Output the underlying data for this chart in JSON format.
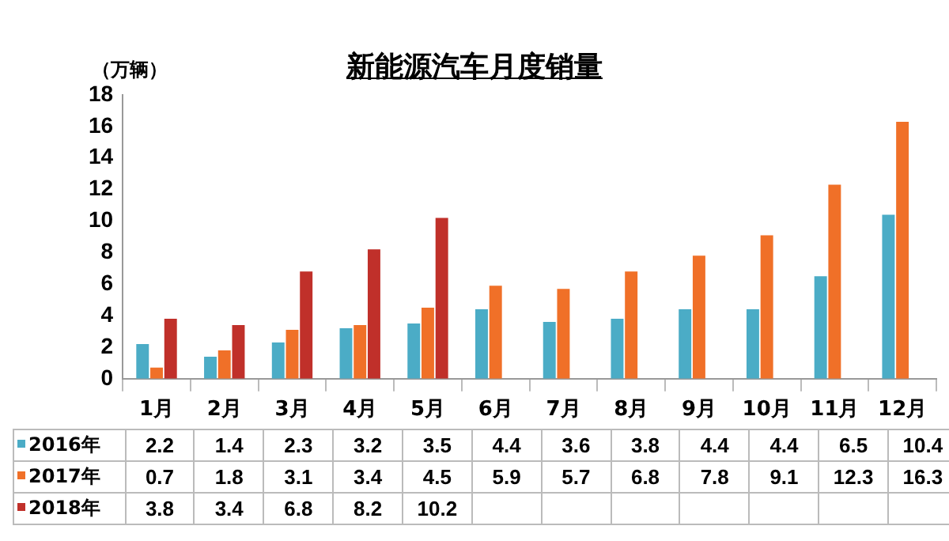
{
  "chart_data": {
    "type": "bar",
    "title": "新能源汽车月度销量",
    "ylabel": "（万辆）",
    "categories": [
      "1月",
      "2月",
      "3月",
      "4月",
      "5月",
      "6月",
      "7月",
      "8月",
      "9月",
      "10月",
      "11月",
      "12月"
    ],
    "series": [
      {
        "name": "2016年",
        "color": "#4bacc6",
        "values": [
          2.2,
          1.4,
          2.3,
          3.2,
          3.5,
          4.4,
          3.6,
          3.8,
          4.4,
          4.4,
          6.5,
          10.4
        ]
      },
      {
        "name": "2017年",
        "color": "#f07028",
        "values": [
          0.7,
          1.8,
          3.1,
          3.4,
          4.5,
          5.9,
          5.7,
          6.8,
          7.8,
          9.1,
          12.3,
          16.3
        ]
      },
      {
        "name": "2018年",
        "color": "#c0302a",
        "values": [
          3.8,
          3.4,
          6.8,
          8.2,
          10.2,
          null,
          null,
          null,
          null,
          null,
          null,
          null
        ]
      }
    ],
    "ylim": [
      0,
      18
    ],
    "yticks": [
      0,
      2,
      4,
      6,
      8,
      10,
      12,
      14,
      16,
      18
    ],
    "grid": false,
    "legend": "bottom",
    "data_labels": true
  }
}
